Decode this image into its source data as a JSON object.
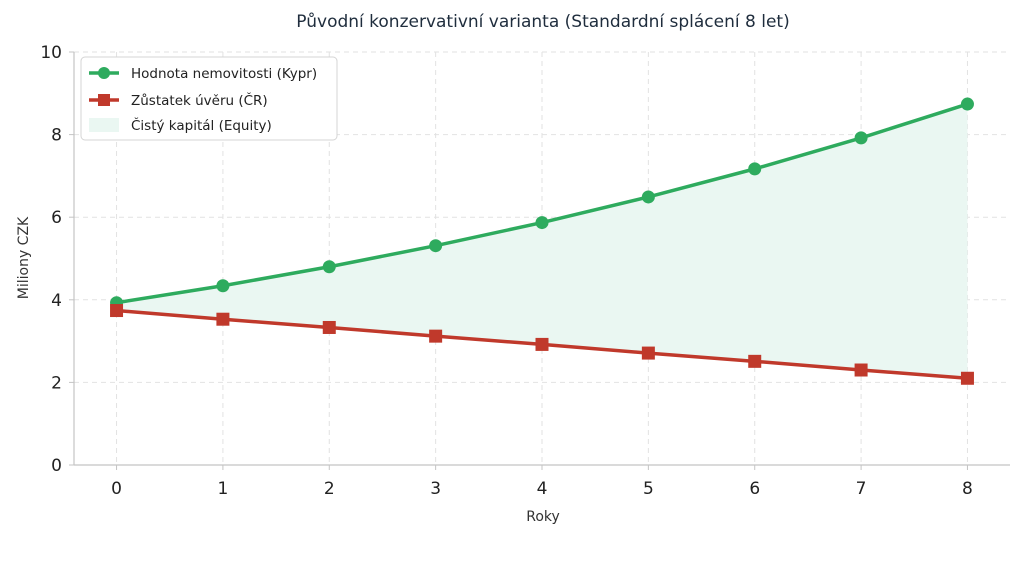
{
  "chart_data": {
    "type": "line",
    "title": "Původní konzervativní varianta (Standardní splácení 8 let)",
    "xlabel": "Roky",
    "ylabel": "Miliony CZK",
    "x": [
      0,
      1,
      2,
      3,
      4,
      5,
      6,
      7,
      8
    ],
    "xticks": [
      0,
      1,
      2,
      3,
      4,
      5,
      6,
      7,
      8
    ],
    "yticks": [
      0,
      2,
      4,
      6,
      8,
      10
    ],
    "xlim": [
      -0.4,
      8.4
    ],
    "ylim": [
      0,
      10
    ],
    "grid": true,
    "legend_position": "top-left",
    "series": [
      {
        "name": "Hodnota nemovitosti (Kypr)",
        "values": [
          3.93,
          4.34,
          4.8,
          5.31,
          5.87,
          6.49,
          7.17,
          7.92,
          8.74
        ],
        "color": "#2eab5e",
        "marker": "circle"
      },
      {
        "name": "Zůstatek úvěru (ČR)",
        "values": [
          3.74,
          3.53,
          3.33,
          3.12,
          2.92,
          2.71,
          2.51,
          2.3,
          2.1
        ],
        "color": "#c0392b",
        "marker": "square"
      }
    ],
    "fill": {
      "name": "Čistý kapitál (Equity)",
      "between": [
        0,
        1
      ],
      "color": "#eaf7f2"
    }
  }
}
